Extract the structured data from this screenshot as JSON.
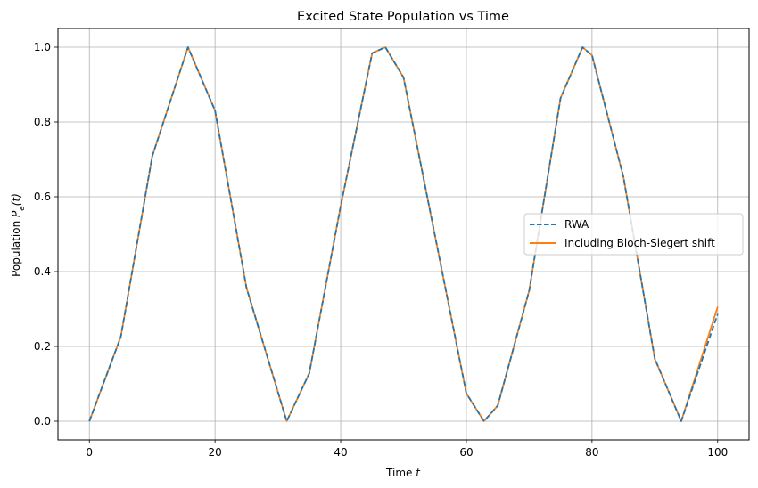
{
  "chart_data": {
    "type": "line",
    "title": "Excited State Population vs Time",
    "xlabel": {
      "prefix": "Time ",
      "var": "t"
    },
    "ylabel": {
      "prefix": "Population ",
      "var": "P",
      "sub": "e",
      "arg": "(t)"
    },
    "xlim": [
      -5,
      105
    ],
    "ylim": [
      -0.05,
      1.05
    ],
    "xticks": [
      0,
      20,
      40,
      60,
      80,
      100
    ],
    "xtick_labels": [
      "0",
      "20",
      "40",
      "60",
      "80",
      "100"
    ],
    "yticks": [
      0.0,
      0.2,
      0.4,
      0.6,
      0.8,
      1.0
    ],
    "ytick_labels": [
      "0.0",
      "0.2",
      "0.4",
      "0.6",
      "0.8",
      "1.0"
    ],
    "grid": true,
    "legend_position": "center-right",
    "series": [
      {
        "name": "RWA",
        "color": "#1f77b4",
        "style": "dashed",
        "x": [
          0,
          5,
          10,
          15.7,
          20,
          25,
          31.4,
          35,
          40,
          45,
          47.1,
          50,
          55,
          60,
          62.8,
          65,
          70,
          75,
          78.5,
          80,
          85,
          90,
          94.2,
          100
        ],
        "y": [
          0.0,
          0.226,
          0.708,
          1.0,
          0.831,
          0.357,
          0.0,
          0.128,
          0.575,
          0.984,
          1.0,
          0.919,
          0.497,
          0.074,
          0.0,
          0.042,
          0.349,
          0.864,
          1.0,
          0.978,
          0.653,
          0.167,
          0.0,
          0.287
        ]
      },
      {
        "name": "Including Bloch-Siegert shift",
        "color": "#ff7f0e",
        "style": "solid",
        "x": [
          0,
          5,
          10,
          15.7,
          20,
          25,
          31.4,
          35,
          40,
          45,
          47.1,
          50,
          55,
          60,
          62.8,
          65,
          70,
          75,
          78.5,
          80,
          85,
          90,
          94.2,
          100
        ],
        "y": [
          0.0,
          0.226,
          0.708,
          1.0,
          0.831,
          0.357,
          0.0,
          0.128,
          0.575,
          0.984,
          1.0,
          0.919,
          0.497,
          0.074,
          0.0,
          0.042,
          0.349,
          0.864,
          1.0,
          0.978,
          0.653,
          0.167,
          0.0,
          0.306
        ]
      }
    ]
  }
}
